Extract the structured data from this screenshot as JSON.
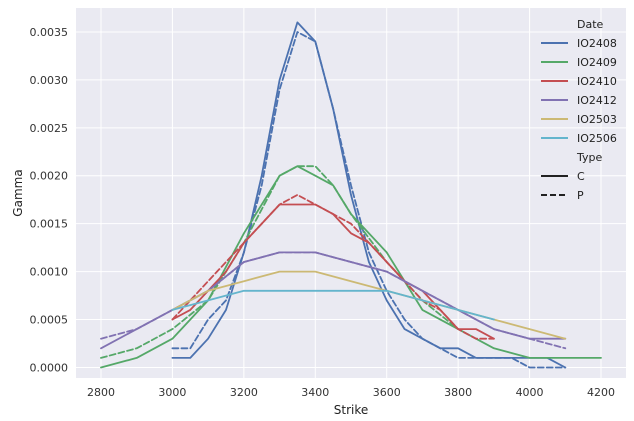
{
  "chart_data": {
    "type": "line",
    "xlabel": "Strike",
    "ylabel": "Gamma",
    "xlim": [
      2730,
      4270
    ],
    "ylim": [
      -0.00011,
      0.00375
    ],
    "xticks": [
      2800,
      3000,
      3200,
      3400,
      3600,
      3800,
      4000,
      4200
    ],
    "xtick_labels": [
      "2800",
      "3000",
      "3200",
      "3400",
      "3600",
      "3800",
      "4000",
      "4200"
    ],
    "yticks": [
      0.0,
      0.0005,
      0.001,
      0.0015,
      0.002,
      0.0025,
      0.003,
      0.0035
    ],
    "ytick_labels": [
      "0.0000",
      "0.0005",
      "0.0010",
      "0.0015",
      "0.0020",
      "0.0025",
      "0.0030",
      "0.0035"
    ],
    "grid": true,
    "background": "#eaeaf2",
    "legend": {
      "placement": "top-right",
      "hue_title": "Date",
      "hue_entries": [
        {
          "name": "IO2408",
          "color": "#4c72b0"
        },
        {
          "name": "IO2409",
          "color": "#55a868"
        },
        {
          "name": "IO2410",
          "color": "#c44e52"
        },
        {
          "name": "IO2412",
          "color": "#8172b2"
        },
        {
          "name": "IO2503",
          "color": "#ccb974"
        },
        {
          "name": "IO2506",
          "color": "#64b5cd"
        }
      ],
      "style_title": "Type",
      "style_entries": [
        {
          "name": "C",
          "dash": "solid"
        },
        {
          "name": "P",
          "dash": "dashed"
        }
      ]
    },
    "series": [
      {
        "date": "IO2408",
        "type": "C",
        "color": "#4c72b0",
        "x": [
          3000,
          3050,
          3100,
          3150,
          3200,
          3250,
          3300,
          3350,
          3400,
          3450,
          3500,
          3550,
          3600,
          3650,
          3700,
          3750,
          3800,
          3850,
          3900,
          3950,
          4000,
          4050,
          4100
        ],
        "y": [
          0.0001,
          0.0001,
          0.0003,
          0.0006,
          0.0012,
          0.002,
          0.003,
          0.0036,
          0.0034,
          0.0027,
          0.0018,
          0.0011,
          0.0007,
          0.0004,
          0.0003,
          0.0002,
          0.0002,
          0.0001,
          0.0001,
          0.0001,
          0.0001,
          0.0001,
          0.0
        ]
      },
      {
        "date": "IO2408",
        "type": "P",
        "color": "#4c72b0",
        "x": [
          3000,
          3050,
          3100,
          3150,
          3200,
          3250,
          3300,
          3350,
          3400,
          3450,
          3500,
          3550,
          3600,
          3650,
          3700,
          3750,
          3800,
          3850,
          3900,
          3950,
          4000,
          4050,
          4100
        ],
        "y": [
          0.0002,
          0.0002,
          0.0005,
          0.0007,
          0.0012,
          0.0019,
          0.0029,
          0.0035,
          0.0034,
          0.0027,
          0.0019,
          0.0012,
          0.0008,
          0.0005,
          0.0003,
          0.0002,
          0.0001,
          0.0001,
          0.0001,
          0.0001,
          0.0,
          0.0,
          0.0
        ]
      },
      {
        "date": "IO2409",
        "type": "C",
        "color": "#55a868",
        "x": [
          2800,
          2900,
          3000,
          3100,
          3200,
          3300,
          3350,
          3400,
          3450,
          3500,
          3600,
          3700,
          3800,
          3900,
          4000,
          4100,
          4200
        ],
        "y": [
          0.0,
          0.0001,
          0.0003,
          0.0007,
          0.0014,
          0.002,
          0.0021,
          0.002,
          0.0019,
          0.0016,
          0.0012,
          0.0006,
          0.0004,
          0.0002,
          0.0001,
          0.0001,
          0.0001
        ]
      },
      {
        "date": "IO2409",
        "type": "P",
        "color": "#55a868",
        "x": [
          2800,
          2900,
          3000,
          3100,
          3200,
          3300,
          3350,
          3400,
          3450,
          3500,
          3600,
          3700,
          3800
        ],
        "y": [
          0.0001,
          0.0002,
          0.0004,
          0.0007,
          0.0013,
          0.002,
          0.0021,
          0.0021,
          0.0019,
          0.0016,
          0.0011,
          0.0007,
          0.0004
        ]
      },
      {
        "date": "IO2410",
        "type": "C",
        "color": "#c44e52",
        "x": [
          3000,
          3050,
          3100,
          3150,
          3200,
          3250,
          3300,
          3350,
          3400,
          3450,
          3500,
          3550,
          3600,
          3650,
          3700,
          3750,
          3800,
          3850,
          3900
        ],
        "y": [
          0.0005,
          0.0006,
          0.0008,
          0.001,
          0.0013,
          0.0015,
          0.0017,
          0.0017,
          0.0017,
          0.0016,
          0.0014,
          0.0013,
          0.0011,
          0.0009,
          0.0008,
          0.0006,
          0.0004,
          0.0004,
          0.0003
        ]
      },
      {
        "date": "IO2410",
        "type": "P",
        "color": "#c44e52",
        "x": [
          3000,
          3050,
          3100,
          3150,
          3200,
          3250,
          3300,
          3350,
          3400,
          3450,
          3500,
          3550,
          3600,
          3650,
          3700,
          3750,
          3800,
          3850,
          3900
        ],
        "y": [
          0.0005,
          0.0007,
          0.0009,
          0.0011,
          0.0013,
          0.0015,
          0.0017,
          0.0018,
          0.0017,
          0.0016,
          0.0015,
          0.0013,
          0.0011,
          0.0009,
          0.0007,
          0.0006,
          0.0004,
          0.0003,
          0.0003
        ]
      },
      {
        "date": "IO2412",
        "type": "C",
        "color": "#8172b2",
        "x": [
          2800,
          2900,
          3000,
          3100,
          3200,
          3300,
          3400,
          3500,
          3600,
          3700,
          3800,
          3900,
          4000,
          4100
        ],
        "y": [
          0.0002,
          0.0004,
          0.0006,
          0.0008,
          0.0011,
          0.0012,
          0.0012,
          0.0011,
          0.001,
          0.0008,
          0.0006,
          0.0004,
          0.0003,
          0.0003
        ]
      },
      {
        "date": "IO2412",
        "type": "P",
        "color": "#8172b2",
        "x": [
          2800,
          2900,
          3000,
          3100,
          3200,
          3300,
          3400,
          3500,
          3600,
          3700,
          3800,
          3900,
          4000,
          4100
        ],
        "y": [
          0.0003,
          0.0004,
          0.0006,
          0.0008,
          0.0011,
          0.0012,
          0.0012,
          0.0011,
          0.001,
          0.0008,
          0.0006,
          0.0004,
          0.0003,
          0.0002
        ]
      },
      {
        "date": "IO2503",
        "type": "C",
        "color": "#ccb974",
        "x": [
          3000,
          3100,
          3200,
          3300,
          3400,
          3500,
          3600,
          3700,
          3800,
          3900,
          4000,
          4100
        ],
        "y": [
          0.0006,
          0.0008,
          0.0009,
          0.001,
          0.001,
          0.0009,
          0.0008,
          0.0007,
          0.0006,
          0.0005,
          0.0004,
          0.0003
        ]
      },
      {
        "date": "IO2506",
        "type": "C",
        "color": "#64b5cd",
        "x": [
          3000,
          3100,
          3200,
          3300,
          3400,
          3500,
          3600,
          3700,
          3800,
          3900
        ],
        "y": [
          0.0006,
          0.0007,
          0.0008,
          0.0008,
          0.0008,
          0.0008,
          0.0008,
          0.0007,
          0.0006,
          0.0005
        ]
      }
    ]
  }
}
